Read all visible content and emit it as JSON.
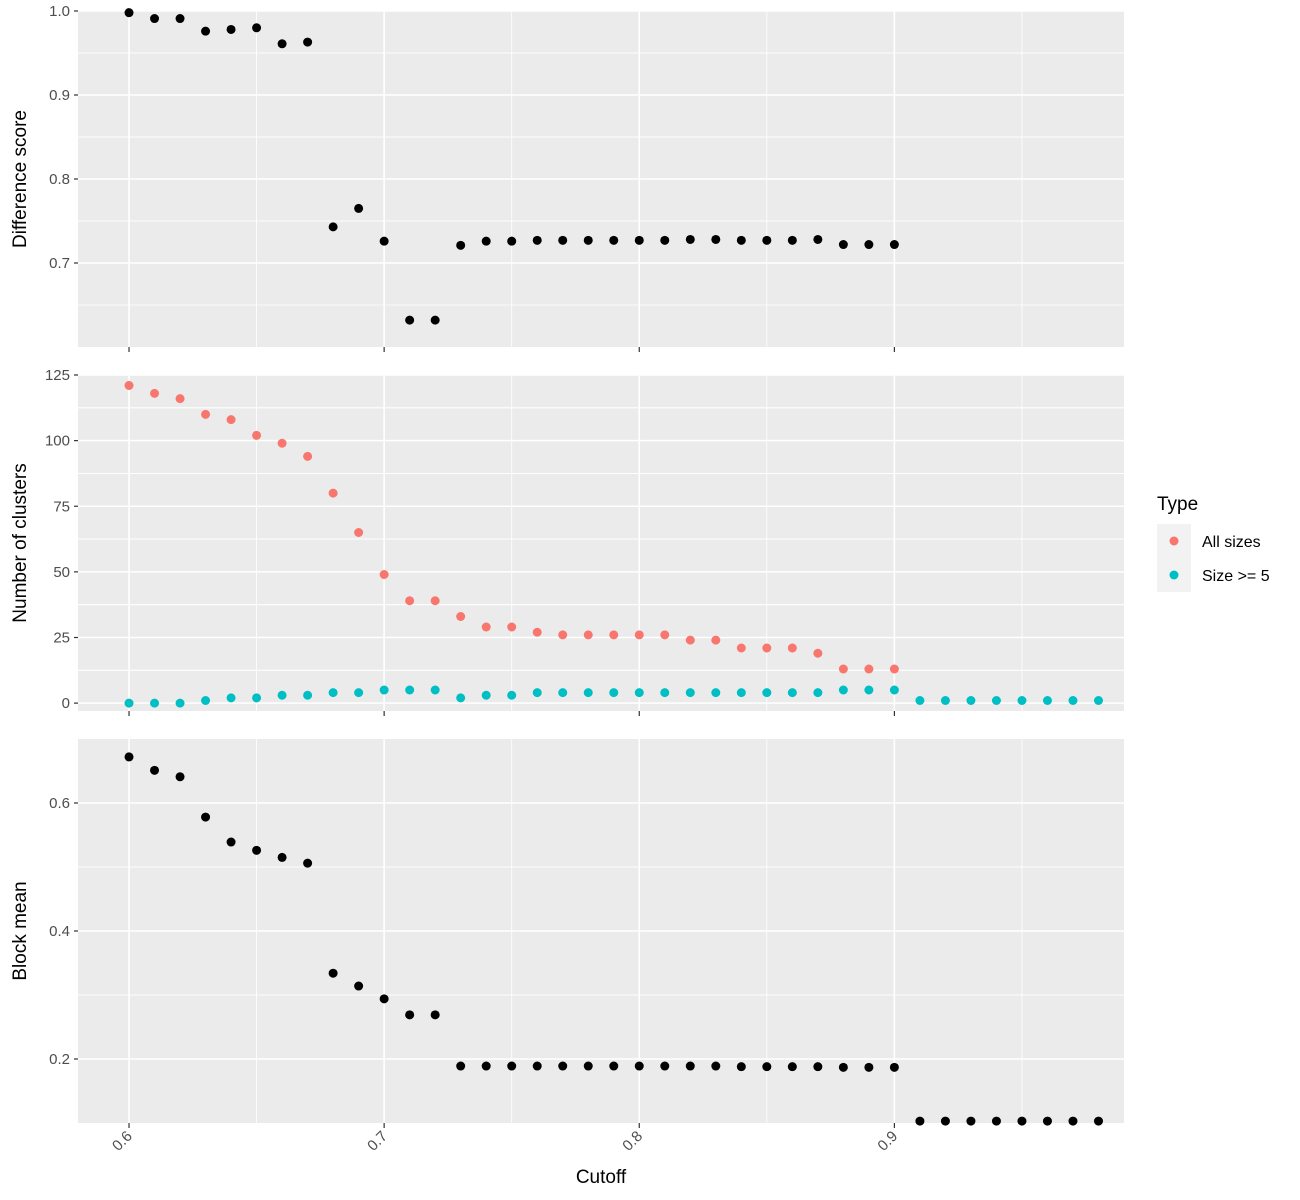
{
  "chart_data": [
    {
      "type": "scatter",
      "panel": "top",
      "ylabel": "Difference score",
      "ylim": [
        0.6,
        1.0
      ],
      "yticks": [
        "0.7",
        "0.8",
        "0.9",
        "1.0"
      ],
      "grid": true,
      "series": [
        {
          "color": "#000000",
          "x": [
            0.6,
            0.61,
            0.62,
            0.63,
            0.64,
            0.65,
            0.66,
            0.67,
            0.68,
            0.69,
            0.7,
            0.71,
            0.72,
            0.73,
            0.74,
            0.75,
            0.76,
            0.77,
            0.78,
            0.79,
            0.8,
            0.81,
            0.82,
            0.83,
            0.84,
            0.85,
            0.86,
            0.87,
            0.88,
            0.89,
            0.9
          ],
          "values": [
            0.998,
            0.991,
            0.991,
            0.976,
            0.978,
            0.98,
            0.961,
            0.963,
            0.743,
            0.765,
            0.726,
            0.632,
            0.632,
            0.721,
            0.726,
            0.726,
            0.727,
            0.727,
            0.727,
            0.727,
            0.727,
            0.727,
            0.728,
            0.728,
            0.727,
            0.727,
            0.727,
            0.728,
            0.722,
            0.722,
            0.722
          ]
        }
      ]
    },
    {
      "type": "scatter",
      "panel": "middle",
      "ylabel": "Number of clusters",
      "ylim": [
        -3,
        125
      ],
      "yticks": [
        "0",
        "25",
        "50",
        "75",
        "100",
        "125"
      ],
      "grid": true,
      "series": [
        {
          "name": "All sizes",
          "color": "#F8766D",
          "x": [
            0.6,
            0.61,
            0.62,
            0.63,
            0.64,
            0.65,
            0.66,
            0.67,
            0.68,
            0.69,
            0.7,
            0.71,
            0.72,
            0.73,
            0.74,
            0.75,
            0.76,
            0.77,
            0.78,
            0.79,
            0.8,
            0.81,
            0.82,
            0.83,
            0.84,
            0.85,
            0.86,
            0.87,
            0.88,
            0.89,
            0.9
          ],
          "values": [
            121,
            118,
            116,
            110,
            108,
            102,
            99,
            94,
            80,
            65,
            49,
            39,
            39,
            33,
            29,
            29,
            27,
            26,
            26,
            26,
            26,
            26,
            24,
            24,
            21,
            21,
            21,
            19,
            13,
            13,
            13
          ]
        },
        {
          "name": "Size >= 5",
          "color": "#00BFC4",
          "x": [
            0.6,
            0.61,
            0.62,
            0.63,
            0.64,
            0.65,
            0.66,
            0.67,
            0.68,
            0.69,
            0.7,
            0.71,
            0.72,
            0.73,
            0.74,
            0.75,
            0.76,
            0.77,
            0.78,
            0.79,
            0.8,
            0.81,
            0.82,
            0.83,
            0.84,
            0.85,
            0.86,
            0.87,
            0.88,
            0.89,
            0.9,
            0.91,
            0.92,
            0.93,
            0.94,
            0.95,
            0.96,
            0.97,
            0.98
          ],
          "values": [
            0,
            0,
            0,
            1,
            2,
            2,
            3,
            3,
            4,
            4,
            5,
            5,
            5,
            2,
            3,
            3,
            4,
            4,
            4,
            4,
            4,
            4,
            4,
            4,
            4,
            4,
            4,
            4,
            5,
            5,
            5,
            1,
            1,
            1,
            1,
            1,
            1,
            1,
            1
          ]
        }
      ]
    },
    {
      "type": "scatter",
      "panel": "bottom",
      "ylabel": "Block mean",
      "xlabel": "Cutoff",
      "ylim": [
        0.1,
        0.7
      ],
      "yticks": [
        "0.2",
        "0.4",
        "0.6"
      ],
      "xticks": [
        "0.6",
        "0.7",
        "0.8",
        "0.9"
      ],
      "xlim": [
        0.58,
        0.99
      ],
      "grid": true,
      "series": [
        {
          "color": "#000000",
          "x": [
            0.6,
            0.61,
            0.62,
            0.63,
            0.64,
            0.65,
            0.66,
            0.67,
            0.68,
            0.69,
            0.7,
            0.71,
            0.72,
            0.73,
            0.74,
            0.75,
            0.76,
            0.77,
            0.78,
            0.79,
            0.8,
            0.81,
            0.82,
            0.83,
            0.84,
            0.85,
            0.86,
            0.87,
            0.88,
            0.89,
            0.9,
            0.91,
            0.92,
            0.93,
            0.94,
            0.95,
            0.96,
            0.97,
            0.98
          ],
          "values": [
            0.672,
            0.651,
            0.641,
            0.578,
            0.539,
            0.526,
            0.515,
            0.506,
            0.334,
            0.314,
            0.294,
            0.269,
            0.269,
            0.189,
            0.189,
            0.189,
            0.189,
            0.189,
            0.189,
            0.189,
            0.189,
            0.189,
            0.189,
            0.189,
            0.188,
            0.188,
            0.188,
            0.188,
            0.187,
            0.187,
            0.187,
            0.103,
            0.103,
            0.103,
            0.103,
            0.103,
            0.103,
            0.103,
            0.103
          ]
        }
      ]
    }
  ],
  "legend": {
    "title": "Type",
    "position": "right",
    "items": [
      {
        "label": "All sizes",
        "color": "#F8766D"
      },
      {
        "label": "Size >= 5",
        "color": "#00BFC4"
      }
    ]
  },
  "colors": {
    "panel_background": "#EBEBEB",
    "grid": "#FFFFFF",
    "legend_key_background": "#F2F2F2"
  }
}
